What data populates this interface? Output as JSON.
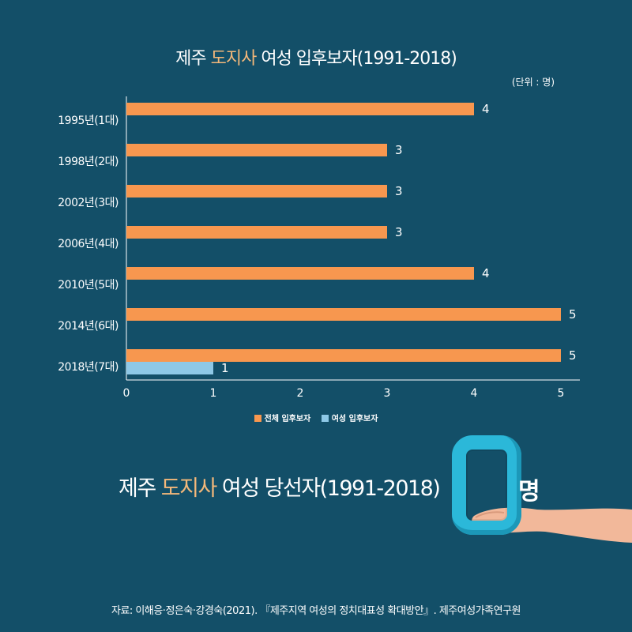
{
  "title": {
    "pre": "제주 ",
    "accent": "도지사",
    "post": " 여성 입후보자(1991-2018)"
  },
  "unit_note": "(단위 : 명)",
  "chart_data": {
    "type": "bar",
    "orientation": "horizontal",
    "title": "제주 도지사 여성 입후보자(1991-2018)",
    "unit": "(단위 : 명)",
    "categories": [
      "1995년(1대)",
      "1998년(2대)",
      "2002년(3대)",
      "2006년(4대)",
      "2010년(5대)",
      "2014년(6대)",
      "2018년(7대)"
    ],
    "series": [
      {
        "name": "전체 입후보자",
        "color": "#f7974f",
        "values": [
          4,
          3,
          3,
          3,
          4,
          5,
          5
        ]
      },
      {
        "name": "여성 입후보자",
        "color": "#8ec8e6",
        "values": [
          0,
          0,
          0,
          0,
          0,
          0,
          1
        ]
      }
    ],
    "xticks": [
      0,
      1,
      2,
      3,
      4,
      5
    ],
    "xlim": [
      0,
      5.2
    ],
    "legend_position": "bottom",
    "grid": false
  },
  "headline": {
    "pre": "제주 ",
    "accent": "도지사",
    "post": " 여성 당선자(1991-2018)"
  },
  "big_number": "0",
  "big_number_unit": "명",
  "source": "자료: 이해응·정은숙·강경숙(2021). 『제주지역 여성의 정치대표성 확대방안』. 제주여성가족연구원",
  "colors": {
    "background": "#134f68",
    "accent": "#f4b87a",
    "big_number": "#2bb8d9"
  }
}
